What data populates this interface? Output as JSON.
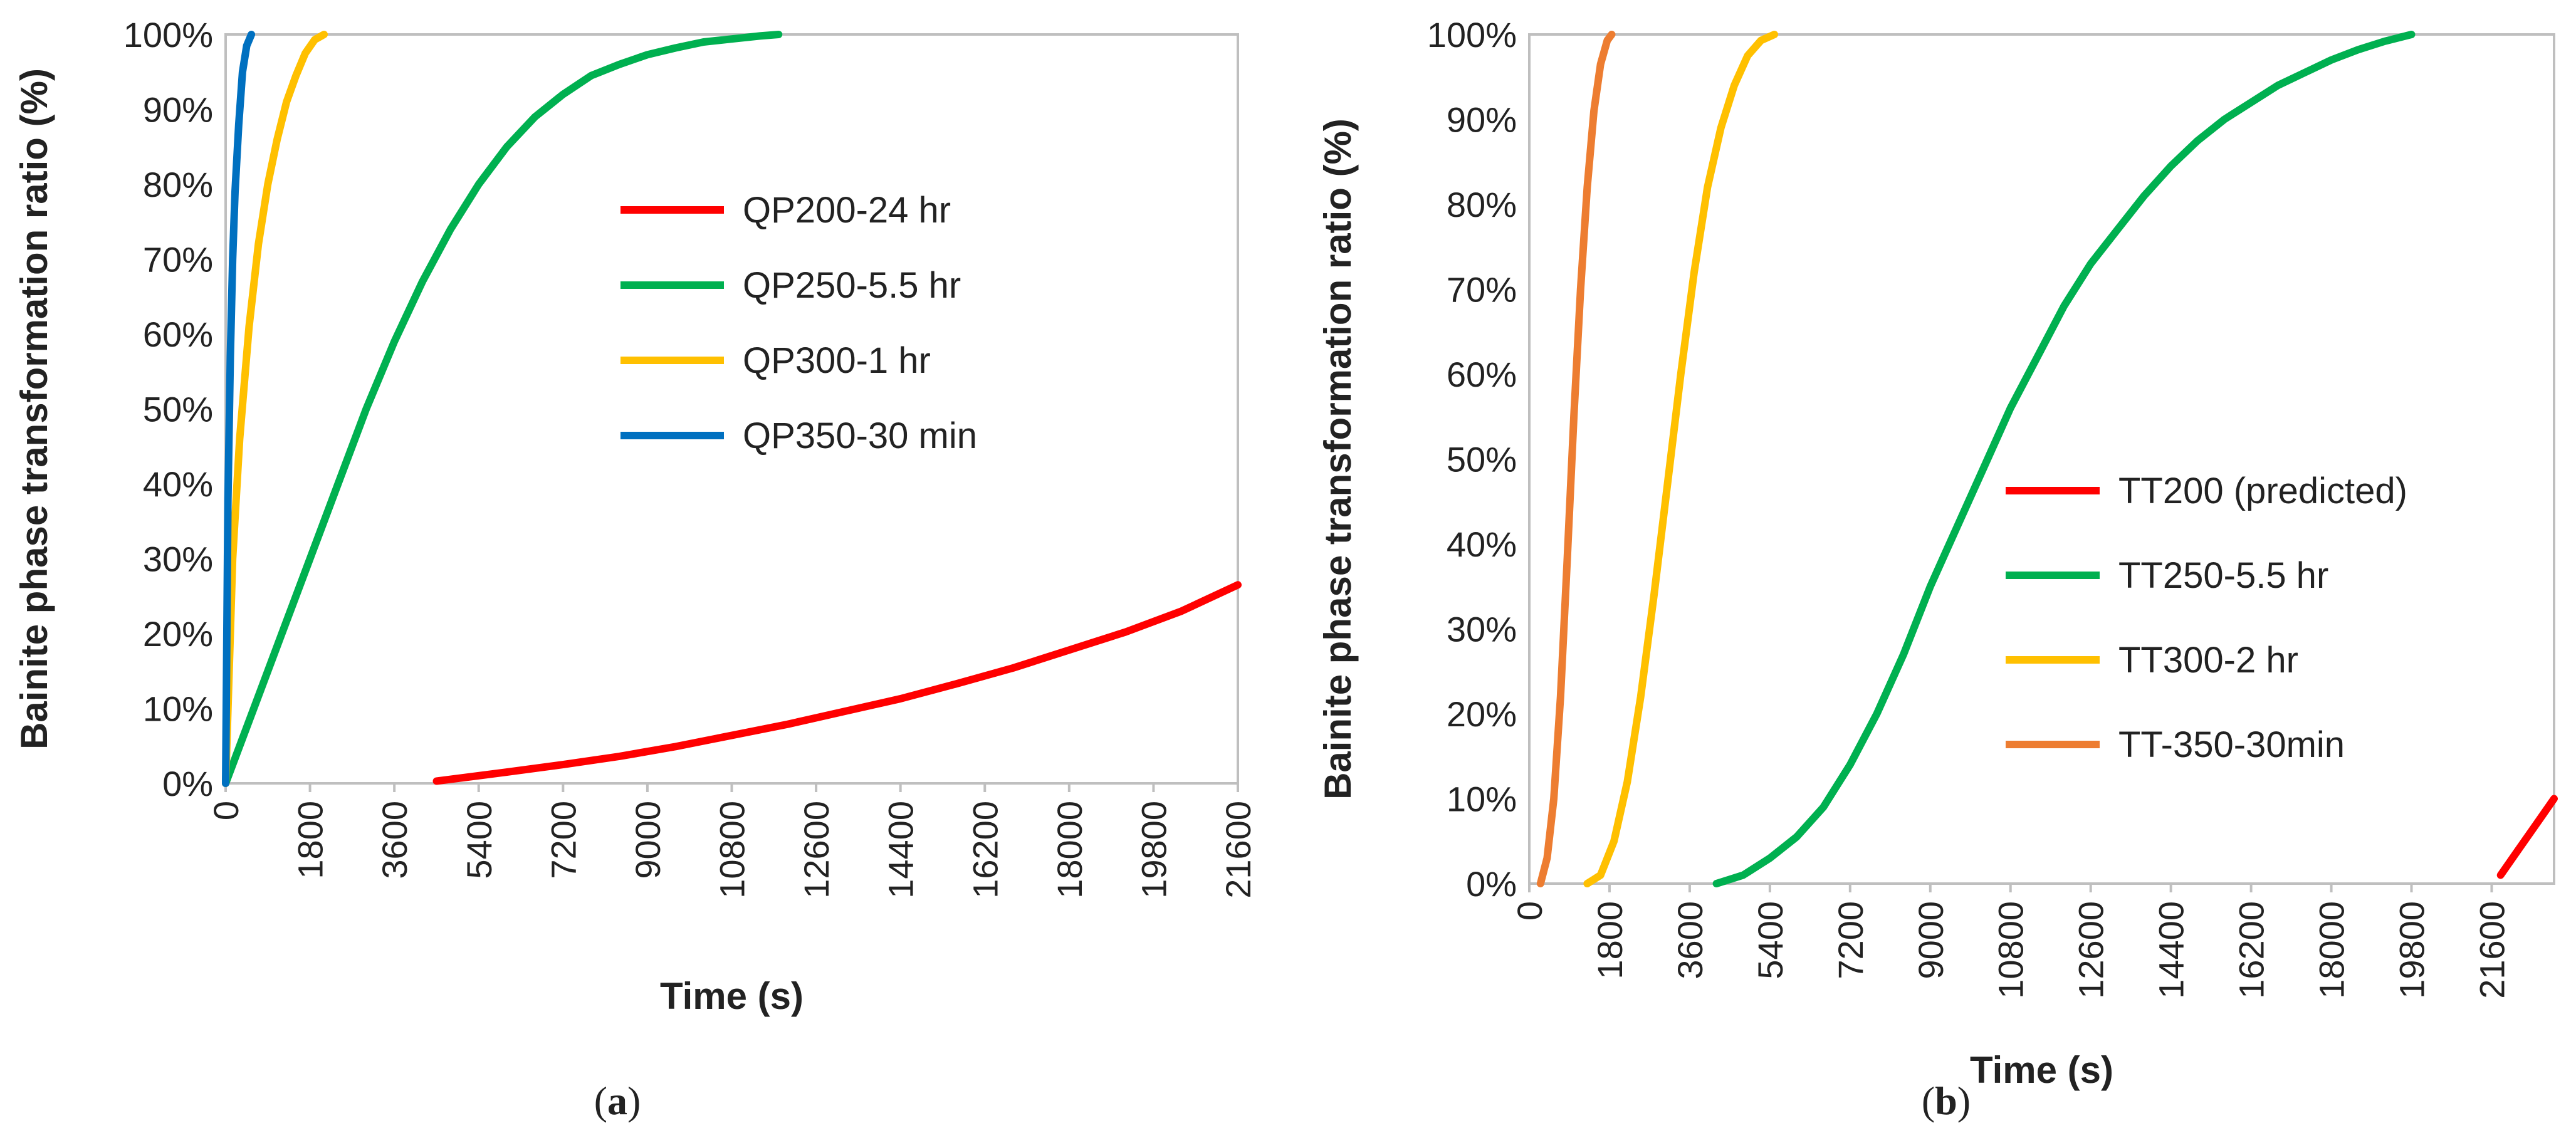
{
  "chart_data": [
    {
      "type": "line",
      "panel_caption": {
        "open": "(",
        "letter": "a",
        "close": ")"
      },
      "xlabel": "Time (s)",
      "ylabel": "Bainite phase transformation ratio (%)",
      "xlim": [
        0,
        21600
      ],
      "ylim": [
        0,
        100
      ],
      "x_ticks": [
        "0",
        "1800",
        "3600",
        "5400",
        "7200",
        "9000",
        "10800",
        "12600",
        "14400",
        "16200",
        "18000",
        "19800",
        "21600"
      ],
      "y_ticks": [
        "0%",
        "10%",
        "20%",
        "30%",
        "40%",
        "50%",
        "60%",
        "70%",
        "80%",
        "90%",
        "100%"
      ],
      "grid": false,
      "legend_position": "center",
      "series": [
        {
          "name": "QP200-24 hr",
          "color": "#ff0000",
          "x": [
            4500,
            6000,
            7200,
            8400,
            9600,
            10800,
            12000,
            13200,
            14400,
            15600,
            16800,
            18000,
            19200,
            20400,
            21600
          ],
          "y": [
            0.3,
            1.5,
            2.5,
            3.6,
            4.9,
            6.4,
            7.9,
            9.6,
            11.3,
            13.3,
            15.4,
            17.8,
            20.2,
            23.0,
            26.5
          ]
        },
        {
          "name": "QP250-5.5 hr",
          "color": "#00b050",
          "x": [
            0,
            600,
            1200,
            1800,
            2400,
            3000,
            3600,
            4200,
            4800,
            5400,
            6000,
            6600,
            7200,
            7800,
            8400,
            9000,
            9600,
            10200,
            10800,
            11400,
            11800
          ],
          "y": [
            0,
            10,
            20,
            30,
            40,
            50,
            59,
            67,
            74,
            80,
            85,
            89,
            92,
            94.5,
            96,
            97.3,
            98.2,
            99,
            99.4,
            99.8,
            100
          ]
        },
        {
          "name": "QP300-1 hr",
          "color": "#ffc000",
          "x": [
            0,
            150,
            300,
            500,
            700,
            900,
            1100,
            1300,
            1500,
            1700,
            1900,
            2100
          ],
          "y": [
            0,
            30,
            46,
            61,
            72,
            80,
            86,
            91,
            94.5,
            97.5,
            99.3,
            100
          ]
        },
        {
          "name": "QP350-30 min",
          "color": "#0070c0",
          "x": [
            0,
            50,
            100,
            150,
            200,
            280,
            360,
            450,
            550
          ],
          "y": [
            0,
            38,
            57,
            70,
            79,
            88,
            95,
            98.5,
            100
          ]
        }
      ]
    },
    {
      "type": "line",
      "panel_caption": {
        "open": "(",
        "letter": "b",
        "close": ")"
      },
      "xlabel": "Time (s)",
      "ylabel": "Bainite phase transformation ratio (%)",
      "xlim": [
        0,
        23000
      ],
      "ylim": [
        0,
        100
      ],
      "x_ticks": [
        "0",
        "1800",
        "3600",
        "5400",
        "7200",
        "9000",
        "10800",
        "12600",
        "14400",
        "16200",
        "18000",
        "19800",
        "21600"
      ],
      "x_tick_values": [
        0,
        1800,
        3600,
        5400,
        7200,
        9000,
        10800,
        12600,
        14400,
        16200,
        18000,
        19800,
        21600
      ],
      "y_ticks": [
        "0%",
        "10%",
        "20%",
        "30%",
        "40%",
        "50%",
        "60%",
        "70%",
        "80%",
        "90%",
        "100%"
      ],
      "grid": false,
      "legend_position": "center-right",
      "series": [
        {
          "name": "TT200 (predicted)",
          "color": "#ff0000",
          "x": [
            21800,
            22200,
            22600,
            23000
          ],
          "y": [
            1,
            4,
            7,
            10
          ]
        },
        {
          "name": "TT250-5.5 hr",
          "color": "#00b050",
          "x": [
            4200,
            4800,
            5400,
            6000,
            6600,
            7200,
            7800,
            8400,
            9000,
            9600,
            10200,
            10800,
            11400,
            12000,
            12600,
            13200,
            13800,
            14400,
            15000,
            15600,
            16200,
            16800,
            17400,
            18000,
            18600,
            19200,
            19800
          ],
          "y": [
            0,
            1,
            3,
            5.5,
            9,
            14,
            20,
            27,
            35,
            42,
            49,
            56,
            62,
            68,
            73,
            77,
            81,
            84.5,
            87.5,
            90,
            92,
            94,
            95.5,
            97,
            98.2,
            99.2,
            100
          ]
        },
        {
          "name": "TT300-2 hr",
          "color": "#ffc000",
          "x": [
            1300,
            1600,
            1900,
            2200,
            2500,
            2800,
            3100,
            3400,
            3700,
            4000,
            4300,
            4600,
            4900,
            5200,
            5500
          ],
          "y": [
            0,
            1,
            5,
            12,
            22,
            34,
            47,
            60,
            72,
            82,
            89,
            94,
            97.5,
            99.3,
            100
          ]
        },
        {
          "name": "TT-350-30min",
          "color": "#ed7d31",
          "x": [
            250,
            400,
            550,
            700,
            850,
            1000,
            1150,
            1300,
            1450,
            1600,
            1750,
            1850
          ],
          "y": [
            0,
            3,
            10,
            22,
            38,
            55,
            70,
            82,
            91,
            96.5,
            99.3,
            100
          ]
        }
      ]
    }
  ]
}
